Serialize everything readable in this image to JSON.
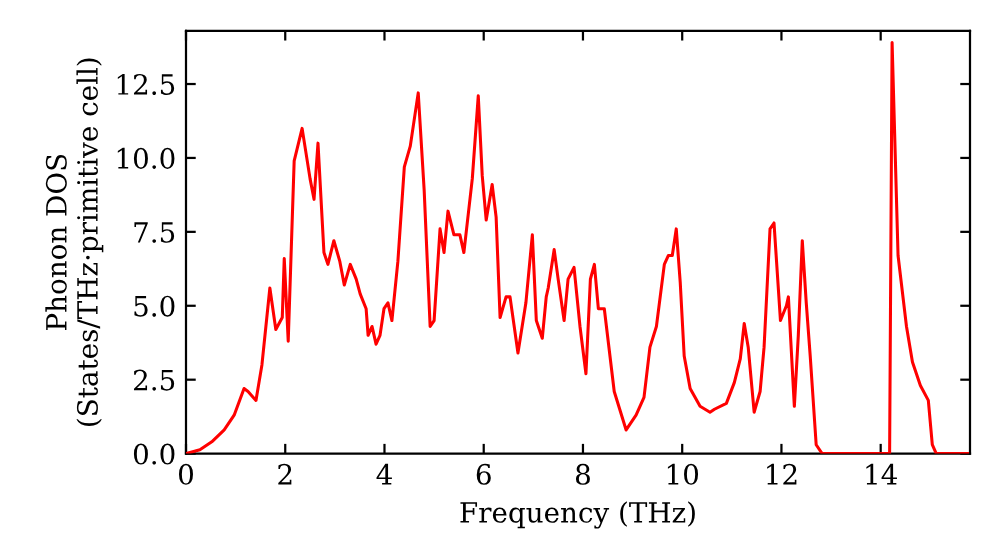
{
  "chart_data": {
    "type": "line",
    "xlabel": "Frequency (THz)",
    "ylabel": "Phonon DOS\n(States/THz·primitive cell)",
    "xlim": [
      0,
      15.8
    ],
    "ylim": [
      0,
      14.3
    ],
    "xticks": [
      0,
      2,
      4,
      6,
      8,
      10,
      12,
      14
    ],
    "yticks": [
      {
        "value": 0,
        "label": "0.0"
      },
      {
        "value": 2.5,
        "label": "2.5"
      },
      {
        "value": 5,
        "label": "5.0"
      },
      {
        "value": 7.5,
        "label": "7.5"
      },
      {
        "value": 10,
        "label": "10.0"
      },
      {
        "value": 12.5,
        "label": "12.5"
      }
    ],
    "grid": false,
    "legend": false,
    "series": [
      {
        "color": "#ff0000",
        "x": [
          0,
          0.28,
          0.52,
          0.77,
          0.97,
          1.17,
          1.25,
          1.41,
          1.53,
          1.69,
          1.81,
          1.94,
          1.98,
          2.06,
          2.18,
          2.34,
          2.5,
          2.58,
          2.66,
          2.78,
          2.86,
          2.98,
          3.1,
          3.19,
          3.31,
          3.43,
          3.51,
          3.63,
          3.67,
          3.75,
          3.83,
          3.91,
          3.99,
          4.07,
          4.15,
          4.27,
          4.4,
          4.52,
          4.68,
          4.8,
          4.92,
          5.0,
          5.12,
          5.2,
          5.28,
          5.4,
          5.52,
          5.6,
          5.77,
          5.89,
          5.97,
          6.05,
          6.17,
          6.25,
          6.33,
          6.45,
          6.53,
          6.69,
          6.85,
          6.98,
          7.06,
          7.18,
          7.26,
          7.3,
          7.42,
          7.5,
          7.62,
          7.7,
          7.82,
          7.94,
          8.06,
          8.15,
          8.23,
          8.31,
          8.43,
          8.63,
          8.87,
          9.07,
          9.23,
          9.35,
          9.48,
          9.64,
          9.72,
          9.8,
          9.88,
          9.96,
          10.04,
          10.16,
          10.36,
          10.56,
          10.65,
          10.89,
          11.05,
          11.17,
          11.25,
          11.33,
          11.45,
          11.57,
          11.65,
          11.77,
          11.85,
          11.98,
          12.1,
          12.14,
          12.26,
          12.34,
          12.42,
          12.5,
          12.58,
          12.7,
          12.82,
          14.18,
          14.23,
          14.35,
          14.52,
          14.64,
          14.8,
          14.96,
          15.04,
          15.12,
          15.75
        ],
        "values": [
          0,
          0.13,
          0.4,
          0.8,
          1.3,
          2.2,
          2.1,
          1.8,
          3.0,
          5.6,
          4.2,
          4.6,
          6.6,
          3.8,
          9.9,
          11.0,
          9.3,
          8.6,
          10.5,
          6.8,
          6.4,
          7.2,
          6.5,
          5.7,
          6.4,
          5.9,
          5.4,
          4.9,
          4.0,
          4.3,
          3.7,
          4.0,
          4.9,
          5.1,
          4.5,
          6.5,
          9.7,
          10.4,
          12.2,
          8.9,
          4.3,
          4.5,
          7.6,
          6.8,
          8.2,
          7.4,
          7.4,
          6.8,
          9.3,
          12.1,
          9.4,
          7.9,
          9.1,
          8.0,
          4.6,
          5.3,
          5.3,
          3.4,
          5.1,
          7.4,
          4.5,
          3.9,
          5.3,
          5.6,
          6.9,
          5.9,
          4.5,
          5.9,
          6.3,
          4.3,
          2.7,
          5.9,
          6.4,
          4.9,
          4.9,
          2.1,
          0.8,
          1.3,
          1.9,
          3.6,
          4.3,
          6.4,
          6.7,
          6.7,
          7.6,
          5.8,
          3.3,
          2.2,
          1.6,
          1.4,
          1.5,
          1.7,
          2.4,
          3.2,
          4.4,
          3.6,
          1.4,
          2.1,
          3.6,
          7.6,
          7.8,
          4.5,
          5.0,
          5.3,
          1.6,
          4.0,
          7.2,
          5.1,
          3.3,
          0.3,
          0,
          0,
          13.9,
          6.7,
          4.3,
          3.1,
          2.3,
          1.8,
          0.3,
          0,
          0
        ]
      }
    ]
  }
}
